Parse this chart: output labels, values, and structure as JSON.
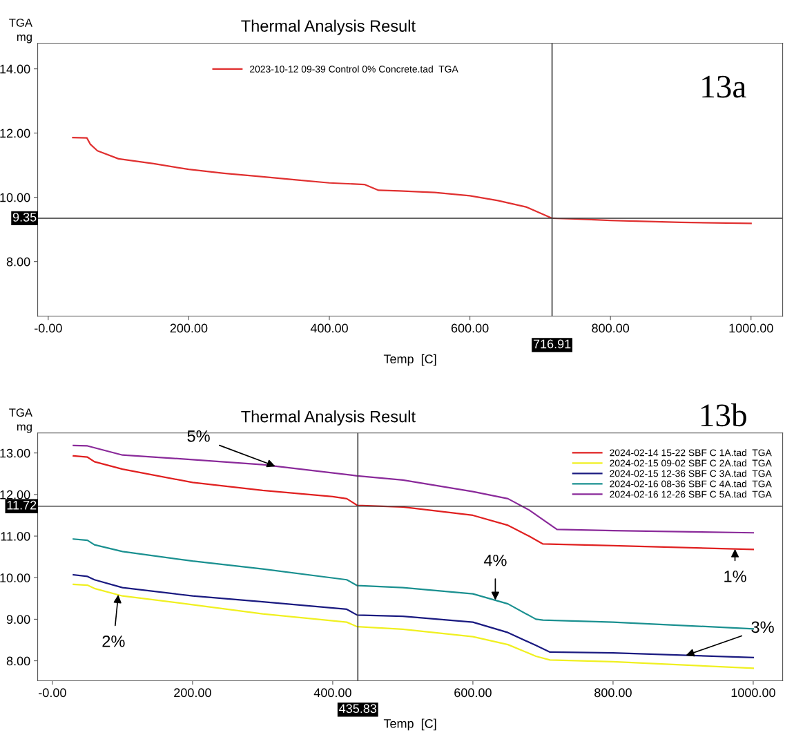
{
  "chart_data": [
    {
      "type": "line",
      "title": "Thermal Analysis Result",
      "xlabel": "Temp  [C]",
      "ylabel": "TGA\nmg",
      "legend": "top",
      "grid": false,
      "xlim": [
        -15,
        1045
      ],
      "ylim": [
        6.3,
        14.8
      ],
      "xticks": [
        {
          "value": 0,
          "label": "-0.00"
        },
        {
          "value": 200,
          "label": "200.00"
        },
        {
          "value": 400,
          "label": "400.00"
        },
        {
          "value": 600,
          "label": "600.00"
        },
        {
          "value": 800,
          "label": "800.00"
        },
        {
          "value": 1000,
          "label": "1000.00"
        }
      ],
      "yticks": [
        {
          "value": 8,
          "label": "8.00"
        },
        {
          "value": 10,
          "label": "10.00"
        },
        {
          "value": 12,
          "label": "12.00"
        },
        {
          "value": 14,
          "label": "14.00"
        }
      ],
      "ref_lines": [
        {
          "axis": "x",
          "value": 716.91,
          "label": "716.91",
          "color": "#404040"
        },
        {
          "axis": "y",
          "value": 9.35,
          "label": "9.35",
          "color": "#404040"
        }
      ],
      "annotations": [
        "13a"
      ],
      "series": [
        {
          "name": "2023-10-12 09-39 Control 0% Concrete.tad  TGA",
          "color": "#e03030",
          "x": [
            35,
            55,
            60,
            70,
            100,
            150,
            200,
            250,
            300,
            350,
            400,
            450,
            470,
            500,
            550,
            600,
            640,
            680,
            717,
            750,
            800,
            900,
            1000
          ],
          "values": [
            11.86,
            11.85,
            11.65,
            11.45,
            11.2,
            11.05,
            10.87,
            10.75,
            10.65,
            10.55,
            10.45,
            10.4,
            10.22,
            10.2,
            10.15,
            10.05,
            9.9,
            9.7,
            9.35,
            9.33,
            9.28,
            9.22,
            9.19
          ]
        }
      ]
    },
    {
      "type": "line",
      "title": "Thermal Analysis Result",
      "xlabel": "Temp  [C]",
      "ylabel": "TGA\nmg",
      "legend": "top right",
      "grid": false,
      "xlim": [
        -21,
        1042
      ],
      "ylim": [
        7.52,
        13.48
      ],
      "xticks": [
        {
          "value": 0,
          "label": "-0.00"
        },
        {
          "value": 200,
          "label": "200.00"
        },
        {
          "value": 400,
          "label": "400.00"
        },
        {
          "value": 600,
          "label": "600.00"
        },
        {
          "value": 800,
          "label": "800.00"
        },
        {
          "value": 1000,
          "label": "1000.00"
        }
      ],
      "yticks": [
        {
          "value": 8,
          "label": "8.00"
        },
        {
          "value": 9,
          "label": "9.00"
        },
        {
          "value": 10,
          "label": "10.00"
        },
        {
          "value": 11,
          "label": "11.00"
        },
        {
          "value": 12,
          "label": "12.00"
        },
        {
          "value": 13,
          "label": "13.00"
        }
      ],
      "ref_lines": [
        {
          "axis": "x",
          "value": 435.83,
          "label": "435.83",
          "color": "#404040"
        },
        {
          "axis": "y",
          "value": 11.72,
          "label": "11.72",
          "color": "#404040"
        }
      ],
      "annotations": [
        "13b",
        {
          "text": "5%",
          "x": 318,
          "y": 12.68
        },
        {
          "text": "1%",
          "x": 974,
          "y": 10.69
        },
        {
          "text": "4%",
          "x": 632,
          "y": 9.46
        },
        {
          "text": "2%",
          "x": 94,
          "y": 9.59
        },
        {
          "text": "3%",
          "x": 904,
          "y": 8.13
        }
      ],
      "series": [
        {
          "name": "2024-02-14 15-22 SBF C 1A.tad  TGA",
          "color": "#e02020",
          "x": [
            30,
            50,
            60,
            100,
            200,
            300,
            400,
            420,
            435,
            500,
            600,
            650,
            680,
            700,
            800,
            1000
          ],
          "values": [
            12.93,
            12.9,
            12.79,
            12.61,
            12.29,
            12.1,
            11.95,
            11.9,
            11.74,
            11.7,
            11.5,
            11.26,
            11.0,
            10.81,
            10.77,
            10.68
          ]
        },
        {
          "name": "2024-02-15 09-02 SBF C 2A.tad  TGA",
          "color": "#f0f020",
          "x": [
            30,
            50,
            60,
            100,
            200,
            300,
            420,
            435,
            500,
            600,
            650,
            690,
            710,
            800,
            1000
          ],
          "values": [
            9.84,
            9.82,
            9.74,
            9.56,
            9.35,
            9.13,
            8.93,
            8.82,
            8.76,
            8.58,
            8.39,
            8.11,
            8.02,
            7.98,
            7.82
          ]
        },
        {
          "name": "2024-02-15 12-36 SBF C 3A.tad  TGA",
          "color": "#1a1a80",
          "x": [
            30,
            50,
            60,
            100,
            200,
            300,
            420,
            435,
            500,
            600,
            650,
            690,
            710,
            800,
            1000
          ],
          "values": [
            10.07,
            10.03,
            9.95,
            9.76,
            9.56,
            9.42,
            9.24,
            9.1,
            9.07,
            8.93,
            8.68,
            8.37,
            8.21,
            8.19,
            8.08
          ]
        },
        {
          "name": "2024-02-16 08-36 SBF C 4A.tad  TGA",
          "color": "#1a9090",
          "x": [
            30,
            50,
            60,
            100,
            200,
            300,
            420,
            435,
            500,
            600,
            650,
            690,
            700,
            800,
            1000
          ],
          "values": [
            10.93,
            10.9,
            10.79,
            10.63,
            10.4,
            10.21,
            9.95,
            9.81,
            9.76,
            9.61,
            9.37,
            9.0,
            8.98,
            8.93,
            8.77
          ]
        },
        {
          "name": "2024-02-16 12-26 SBF C 5A.tad  TGA",
          "color": "#8a2a9a",
          "x": [
            30,
            50,
            100,
            200,
            300,
            435,
            500,
            600,
            650,
            680,
            720,
            800,
            1000
          ],
          "values": [
            13.18,
            13.17,
            12.95,
            12.84,
            12.72,
            12.45,
            12.35,
            12.07,
            11.9,
            11.63,
            11.16,
            11.13,
            11.08
          ]
        }
      ]
    }
  ]
}
